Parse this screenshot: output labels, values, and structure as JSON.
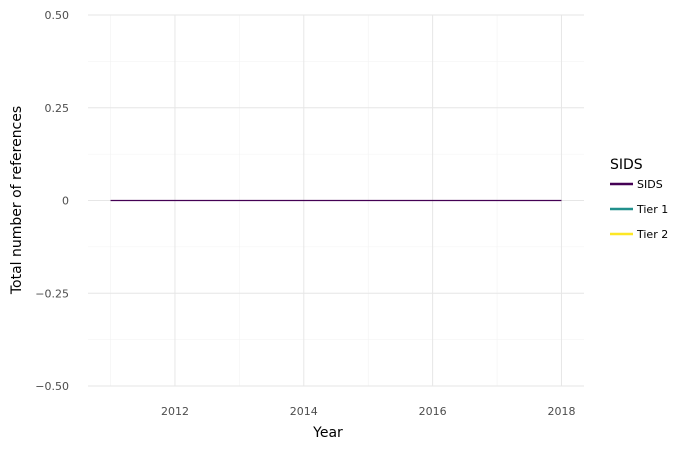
{
  "chart_data": {
    "type": "line",
    "xlabel": "Year",
    "ylabel": "Total number of references",
    "xlim": [
      2010.65,
      2018.35
    ],
    "ylim": [
      -0.5,
      0.5
    ],
    "x_ticks": [
      2012,
      2014,
      2016,
      2018
    ],
    "x_tick_labels": [
      "2012",
      "2014",
      "2016",
      "2018"
    ],
    "y_ticks": [
      0.5,
      0.25,
      0,
      -0.25,
      -0.5
    ],
    "y_tick_labels": [
      "0.50",
      "0.25",
      "0",
      "−0.25",
      "−0.50"
    ],
    "grid": true,
    "legend": {
      "title": "SIDS",
      "position": "right",
      "entries": [
        {
          "label": "SIDS",
          "color": "#440154"
        },
        {
          "label": "Tier 1",
          "color": "#21908C"
        },
        {
          "label": "Tier 2",
          "color": "#FDE725"
        }
      ]
    },
    "series": [
      {
        "name": "SIDS",
        "color": "#440154",
        "x": [
          2011,
          2012,
          2013,
          2014,
          2015,
          2016,
          2017,
          2018
        ],
        "y": [
          0,
          0,
          0,
          0,
          0,
          0,
          0,
          0
        ]
      }
    ]
  }
}
